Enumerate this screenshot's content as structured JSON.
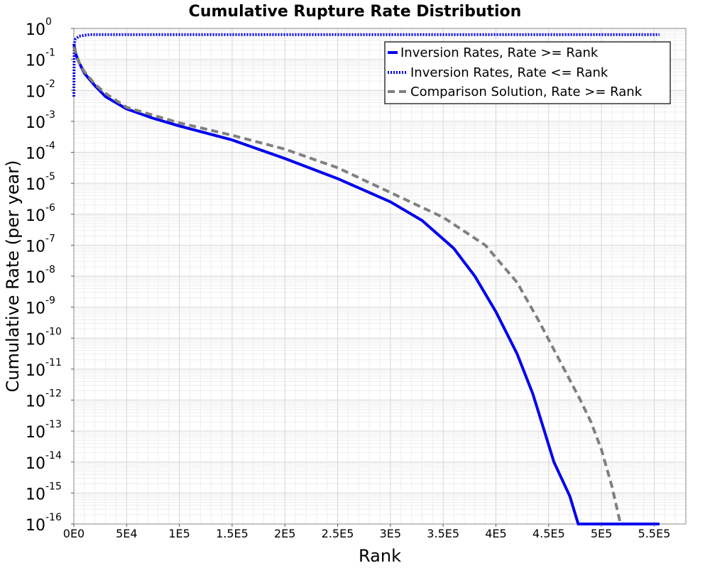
{
  "chart_data": {
    "type": "line",
    "title": "Cumulative Rupture Rate Distribution",
    "xlabel": "Rank",
    "ylabel": "Cumulative Rate (per year)",
    "xscale": "linear",
    "yscale": "log",
    "xlim": [
      0,
      580000
    ],
    "ylim_log10": [
      -16,
      0
    ],
    "grid": true,
    "legend_position": "top-right",
    "x_ticks": [
      {
        "value": 0,
        "label": "0E0"
      },
      {
        "value": 50000,
        "label": "5E4"
      },
      {
        "value": 100000,
        "label": "1E5"
      },
      {
        "value": 150000,
        "label": "1.5E5"
      },
      {
        "value": 200000,
        "label": "2E5"
      },
      {
        "value": 250000,
        "label": "2.5E5"
      },
      {
        "value": 300000,
        "label": "3E5"
      },
      {
        "value": 350000,
        "label": "3.5E5"
      },
      {
        "value": 400000,
        "label": "4E5"
      },
      {
        "value": 450000,
        "label": "4.5E5"
      },
      {
        "value": 500000,
        "label": "5E5"
      },
      {
        "value": 550000,
        "label": "5.5E5"
      }
    ],
    "y_ticks": [
      {
        "exp": 0,
        "base": "10",
        "exponent": "0"
      },
      {
        "exp": -1,
        "base": "10",
        "exponent": "-1"
      },
      {
        "exp": -2,
        "base": "10",
        "exponent": "-2"
      },
      {
        "exp": -3,
        "base": "10",
        "exponent": "-3"
      },
      {
        "exp": -4,
        "base": "10",
        "exponent": "-4"
      },
      {
        "exp": -5,
        "base": "10",
        "exponent": "-5"
      },
      {
        "exp": -6,
        "base": "10",
        "exponent": "-6"
      },
      {
        "exp": -7,
        "base": "10",
        "exponent": "-7"
      },
      {
        "exp": -8,
        "base": "10",
        "exponent": "-8"
      },
      {
        "exp": -9,
        "base": "10",
        "exponent": "-9"
      },
      {
        "exp": -10,
        "base": "10",
        "exponent": "-10"
      },
      {
        "exp": -11,
        "base": "10",
        "exponent": "-11"
      },
      {
        "exp": -12,
        "base": "10",
        "exponent": "-12"
      },
      {
        "exp": -13,
        "base": "10",
        "exponent": "-13"
      },
      {
        "exp": -14,
        "base": "10",
        "exponent": "-14"
      },
      {
        "exp": -15,
        "base": "10",
        "exponent": "-15"
      },
      {
        "exp": -16,
        "base": "10",
        "exponent": "-16"
      }
    ],
    "series": [
      {
        "name": "Inversion Rates, Rate >= Rank",
        "color": "#0000ee",
        "style": "solid",
        "points_log10": [
          [
            0,
            -0.5
          ],
          [
            2000,
            -0.85
          ],
          [
            5000,
            -1.1
          ],
          [
            10000,
            -1.45
          ],
          [
            20000,
            -1.85
          ],
          [
            30000,
            -2.2
          ],
          [
            50000,
            -2.6
          ],
          [
            75000,
            -2.9
          ],
          [
            100000,
            -3.15
          ],
          [
            150000,
            -3.6
          ],
          [
            200000,
            -4.2
          ],
          [
            250000,
            -4.85
          ],
          [
            300000,
            -5.6
          ],
          [
            330000,
            -6.2
          ],
          [
            360000,
            -7.1
          ],
          [
            380000,
            -8.0
          ],
          [
            400000,
            -9.15
          ],
          [
            420000,
            -10.5
          ],
          [
            435000,
            -11.8
          ],
          [
            445000,
            -12.9
          ],
          [
            455000,
            -14.0
          ],
          [
            470000,
            -15.1
          ],
          [
            478000,
            -16.0
          ],
          [
            555000,
            -16.0
          ]
        ]
      },
      {
        "name": "Inversion Rates, Rate <= Rank",
        "color": "#0000ee",
        "style": "dotted",
        "points_log10": [
          [
            0,
            -2.2
          ],
          [
            400,
            -0.5
          ],
          [
            1500,
            -0.35
          ],
          [
            5000,
            -0.25
          ],
          [
            15000,
            -0.2
          ],
          [
            50000,
            -0.2
          ],
          [
            555000,
            -0.2
          ]
        ]
      },
      {
        "name": "Comparison Solution, Rate >= Rank",
        "color": "#808080",
        "style": "dashed",
        "points_log10": [
          [
            0,
            -0.6
          ],
          [
            5000,
            -1.1
          ],
          [
            10000,
            -1.4
          ],
          [
            20000,
            -1.8
          ],
          [
            30000,
            -2.1
          ],
          [
            50000,
            -2.55
          ],
          [
            100000,
            -3.05
          ],
          [
            150000,
            -3.45
          ],
          [
            200000,
            -3.9
          ],
          [
            250000,
            -4.5
          ],
          [
            300000,
            -5.3
          ],
          [
            350000,
            -6.1
          ],
          [
            390000,
            -7.0
          ],
          [
            420000,
            -8.2
          ],
          [
            440000,
            -9.4
          ],
          [
            460000,
            -10.7
          ],
          [
            480000,
            -12.0
          ],
          [
            490000,
            -12.7
          ],
          [
            500000,
            -13.6
          ],
          [
            510000,
            -14.8
          ],
          [
            518000,
            -16.0
          ]
        ]
      }
    ]
  }
}
